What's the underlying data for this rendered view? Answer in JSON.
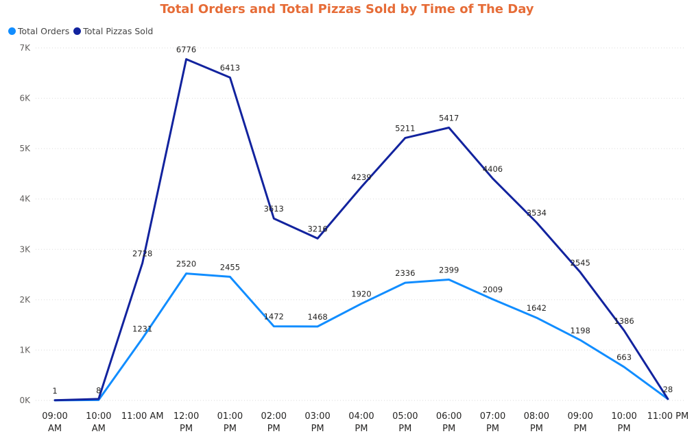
{
  "chart_data": {
    "type": "line",
    "title": "Total Orders and Total Pizzas Sold by Time of The Day",
    "xlabel": "",
    "ylabel": "",
    "categories": [
      [
        "09:00",
        "AM"
      ],
      [
        "10:00",
        "AM"
      ],
      [
        "11:00 AM"
      ],
      [
        "12:00",
        "PM"
      ],
      [
        "01:00",
        "PM"
      ],
      [
        "02:00",
        "PM"
      ],
      [
        "03:00",
        "PM"
      ],
      [
        "04:00",
        "PM"
      ],
      [
        "05:00",
        "PM"
      ],
      [
        "06:00",
        "PM"
      ],
      [
        "07:00",
        "PM"
      ],
      [
        "08:00",
        "PM"
      ],
      [
        "09:00",
        "PM"
      ],
      [
        "10:00",
        "PM"
      ],
      [
        "11:00 PM"
      ]
    ],
    "series": [
      {
        "name": "Total Orders",
        "color": "#118DFF",
        "values": [
          1,
          8,
          1231,
          2520,
          2455,
          1472,
          1468,
          1920,
          2336,
          2399,
          2009,
          1642,
          1198,
          663,
          28
        ]
      },
      {
        "name": "Total Pizzas Sold",
        "color": "#12239E",
        "values": [
          4,
          28,
          2728,
          6776,
          6413,
          3613,
          3216,
          4239,
          5211,
          5417,
          4406,
          3534,
          2545,
          1386,
          28
        ]
      }
    ],
    "labels_shown": [
      [
        "1",
        "8",
        "1231",
        "2520",
        "2455",
        "1472",
        "1468",
        "1920",
        "2336",
        "2399",
        "2009",
        "1642",
        "1198",
        "663",
        ""
      ],
      [
        "",
        "",
        "2728",
        "6776",
        "6413",
        "3613",
        "3216",
        "4239",
        "5211",
        "5417",
        "4406",
        "3534",
        "2545",
        "1386",
        "28"
      ]
    ],
    "yticks": [
      0,
      1000,
      2000,
      3000,
      4000,
      5000,
      6000,
      7000
    ],
    "ytick_labels": [
      "0K",
      "1K",
      "2K",
      "3K",
      "4K",
      "5K",
      "6K",
      "7K"
    ],
    "ylim": [
      0,
      7000
    ],
    "grid": true,
    "legend": "top-left"
  },
  "style": {
    "title_color": "#E66C37",
    "grid_color": "#d9d9d9"
  }
}
